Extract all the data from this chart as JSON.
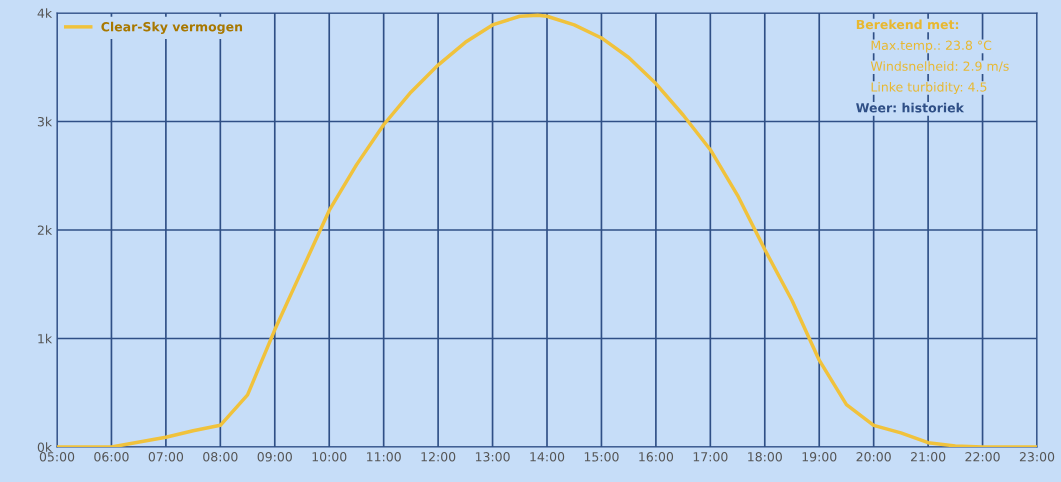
{
  "chart_data": {
    "type": "line",
    "x": [
      5,
      6,
      7,
      7.5,
      8,
      8.5,
      9,
      9.5,
      10,
      10.5,
      11,
      11.5,
      12,
      12.5,
      13,
      13.5,
      13.83,
      14,
      14.5,
      15,
      15.5,
      16,
      16.5,
      17,
      17.5,
      18,
      18.5,
      19,
      19.5,
      20,
      20.5,
      21,
      21.5,
      22,
      23
    ],
    "series": [
      {
        "name": "Clear-Sky vermogen",
        "color": "#f0c23c",
        "values": [
          0,
          0,
          90,
          150,
          200,
          480,
          1080,
          1630,
          2180,
          2600,
          2970,
          3270,
          3520,
          3730,
          3890,
          3970,
          3980,
          3970,
          3890,
          3770,
          3590,
          3350,
          3060,
          2740,
          2320,
          1820,
          1350,
          800,
          390,
          200,
          130,
          40,
          10,
          0,
          0
        ]
      }
    ],
    "xlim": [
      5,
      23
    ],
    "xticks": [
      {
        "value": 5,
        "label": "05:00"
      },
      {
        "value": 6,
        "label": "06:00"
      },
      {
        "value": 7,
        "label": "07:00"
      },
      {
        "value": 8,
        "label": "08:00"
      },
      {
        "value": 9,
        "label": "09:00"
      },
      {
        "value": 10,
        "label": "10:00"
      },
      {
        "value": 11,
        "label": "11:00"
      },
      {
        "value": 12,
        "label": "12:00"
      },
      {
        "value": 13,
        "label": "13:00"
      },
      {
        "value": 14,
        "label": "14:00"
      },
      {
        "value": 15,
        "label": "15:00"
      },
      {
        "value": 16,
        "label": "16:00"
      },
      {
        "value": 17,
        "label": "17:00"
      },
      {
        "value": 18,
        "label": "18:00"
      },
      {
        "value": 19,
        "label": "19:00"
      },
      {
        "value": 20,
        "label": "20:00"
      },
      {
        "value": 21,
        "label": "21:00"
      },
      {
        "value": 22,
        "label": "22:00"
      },
      {
        "value": 23,
        "label": "23:00"
      }
    ],
    "ylim": [
      0,
      4000
    ],
    "yticks": [
      {
        "value": 0,
        "label": "0k"
      },
      {
        "value": 1000,
        "label": "1k"
      },
      {
        "value": 2000,
        "label": "2k"
      },
      {
        "value": 3000,
        "label": "3k"
      },
      {
        "value": 4000,
        "label": "4k"
      }
    ],
    "grid": true,
    "legend": "top left",
    "marker": "none",
    "line_style": "solid",
    "annotations": [
      "Berekend met:",
      "Max.temp.: 23.8 °C",
      "Windsnelheid: 2.9 m/s",
      "Linke turbidity: 4.5",
      "Weer: historiek"
    ]
  }
}
